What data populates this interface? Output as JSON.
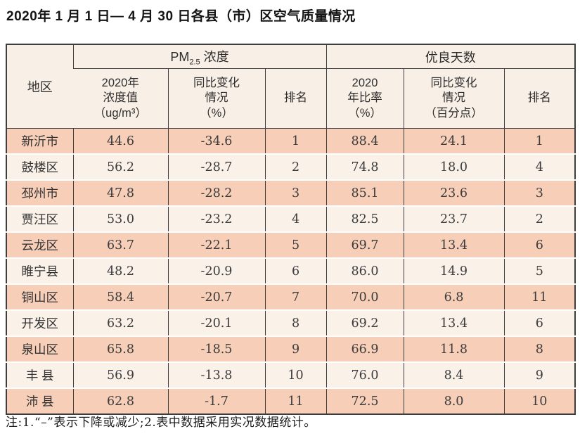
{
  "page": {
    "title": "2020年 1 月 1 日— 4 月 30 日各县（市）区空气质量情况",
    "note": "注:1.“–”表示下降或减少;2.表中数据采用实况数据统计。"
  },
  "table": {
    "region_header": "地区",
    "groups": [
      {
        "title_prefix": "PM",
        "title_sub": "2.5",
        "title_suffix": " 浓度"
      },
      {
        "title": "优良天数"
      }
    ],
    "subheaders": [
      "2020年\n浓度值\n（ug/m³）",
      "同比变化\n情况\n（%）",
      "排名",
      "2020\n年比率\n（%）",
      "同比变化\n情况\n（百分点）",
      "排名"
    ],
    "rows": [
      {
        "region": "新沂市",
        "cells": [
          "44.6",
          "-34.6",
          "1",
          "88.4",
          "24.1",
          "1"
        ]
      },
      {
        "region": "鼓楼区",
        "cells": [
          "56.2",
          "-28.7",
          "2",
          "74.8",
          "18.0",
          "4"
        ]
      },
      {
        "region": "邳州市",
        "cells": [
          "47.8",
          "-28.2",
          "3",
          "85.1",
          "23.6",
          "3"
        ]
      },
      {
        "region": "贾汪区",
        "cells": [
          "53.0",
          "-23.2",
          "4",
          "82.5",
          "23.7",
          "2"
        ]
      },
      {
        "region": "云龙区",
        "cells": [
          "63.7",
          "-22.1",
          "5",
          "69.7",
          "13.4",
          "6"
        ]
      },
      {
        "region": "睢宁县",
        "cells": [
          "48.2",
          "-20.9",
          "6",
          "86.0",
          "14.9",
          "5"
        ]
      },
      {
        "region": "铜山区",
        "cells": [
          "58.4",
          "-20.7",
          "7",
          "70.0",
          "6.8",
          "11"
        ]
      },
      {
        "region": "开发区",
        "cells": [
          "63.2",
          "-20.1",
          "8",
          "69.2",
          "13.4",
          "6"
        ]
      },
      {
        "region": "泉山区",
        "cells": [
          "65.8",
          "-18.5",
          "9",
          "66.9",
          "11.8",
          "8"
        ]
      },
      {
        "region": "丰 县",
        "cells": [
          "56.9",
          "-13.8",
          "10",
          "76.0",
          "8.4",
          "9"
        ]
      },
      {
        "region": "沛 县",
        "cells": [
          "62.8",
          "-1.7",
          "11",
          "72.5",
          "8.0",
          "10"
        ]
      }
    ]
  },
  "colors": {
    "row_peach": "#f7ceb8",
    "row_cream": "#faf1e9",
    "header_bg": "#f8efe6",
    "border": "#3d3d3d"
  }
}
